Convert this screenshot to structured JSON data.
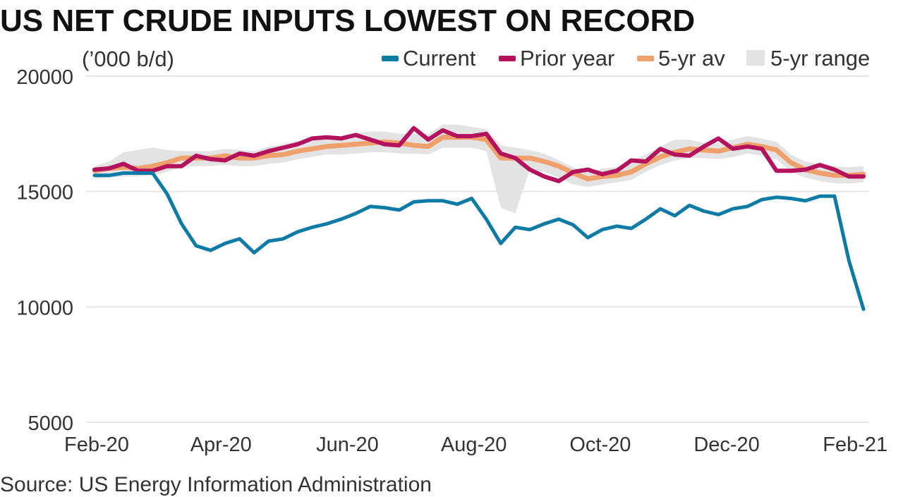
{
  "header": {
    "title": "US NET CRUDE INPUTS LOWEST ON RECORD",
    "unit": "(’000 b/d)"
  },
  "footer": {
    "source": "Source: US Energy Information Administration"
  },
  "colors": {
    "current": "#0e7aa6",
    "prior_year": "#b5125e",
    "five_yr_av": "#f0a06a",
    "five_yr_range": "#e3e3e3",
    "grid": "#e6e6e6",
    "text": "#333333"
  },
  "chart_data": {
    "type": "line",
    "title": "US NET CRUDE INPUTS LOWEST ON RECORD",
    "ylabel": "(’000 b/d)",
    "xlabel": "",
    "ylim": [
      5000,
      20000
    ],
    "yticks": [
      5000,
      10000,
      15000,
      20000
    ],
    "xlim": [
      "2020-01-31",
      "2021-02-05"
    ],
    "xtick_labels": [
      {
        "label": "Feb-20",
        "date": "2020-02-01"
      },
      {
        "label": "Apr-20",
        "date": "2020-04-01"
      },
      {
        "label": "Jun-20",
        "date": "2020-06-01"
      },
      {
        "label": "Aug-20",
        "date": "2020-08-01"
      },
      {
        "label": "Oct-20",
        "date": "2020-10-01"
      },
      {
        "label": "Dec-20",
        "date": "2020-12-01"
      },
      {
        "label": "Feb-21",
        "date": "2021-02-01"
      }
    ],
    "grid": true,
    "legend_position": "top-right",
    "x": [
      "2020-01-31",
      "2020-02-07",
      "2020-02-14",
      "2020-02-21",
      "2020-02-28",
      "2020-03-06",
      "2020-03-13",
      "2020-03-20",
      "2020-03-27",
      "2020-04-03",
      "2020-04-10",
      "2020-04-17",
      "2020-04-24",
      "2020-05-01",
      "2020-05-08",
      "2020-05-15",
      "2020-05-22",
      "2020-05-29",
      "2020-06-05",
      "2020-06-12",
      "2020-06-19",
      "2020-06-26",
      "2020-07-03",
      "2020-07-10",
      "2020-07-17",
      "2020-07-24",
      "2020-07-31",
      "2020-08-07",
      "2020-08-14",
      "2020-08-21",
      "2020-08-28",
      "2020-09-04",
      "2020-09-11",
      "2020-09-18",
      "2020-09-25",
      "2020-10-02",
      "2020-10-09",
      "2020-10-16",
      "2020-10-23",
      "2020-10-30",
      "2020-11-06",
      "2020-11-13",
      "2020-11-20",
      "2020-11-27",
      "2020-12-04",
      "2020-12-11",
      "2020-12-18",
      "2020-12-25",
      "2021-01-01",
      "2021-01-08",
      "2021-01-15",
      "2021-01-22",
      "2021-01-29",
      "2021-02-05"
    ],
    "series": [
      {
        "name": "Current",
        "values": [
          15700,
          15700,
          15800,
          15800,
          15800,
          14900,
          13600,
          12650,
          12450,
          12750,
          12950,
          12350,
          12850,
          12950,
          13250,
          13450,
          13600,
          13800,
          14050,
          14350,
          14300,
          14200,
          14550,
          14600,
          14600,
          14450,
          14700,
          13800,
          12750,
          13450,
          13350,
          13600,
          13800,
          13550,
          13000,
          13350,
          13500,
          13400,
          13800,
          14250,
          13950,
          14400,
          14150,
          14000,
          14250,
          14350,
          14650,
          14750,
          14700,
          14600,
          14800,
          14800,
          12000,
          9900
        ]
      },
      {
        "name": "Prior year",
        "values": [
          15950,
          16000,
          16200,
          15900,
          15900,
          16100,
          16100,
          16550,
          16400,
          16350,
          16650,
          16550,
          16750,
          16900,
          17050,
          17300,
          17350,
          17300,
          17450,
          17250,
          17050,
          17000,
          17750,
          17250,
          17650,
          17400,
          17400,
          17500,
          16650,
          16450,
          15950,
          15650,
          15450,
          15850,
          15950,
          15750,
          15900,
          16350,
          16300,
          16850,
          16600,
          16550,
          16950,
          17300,
          16850,
          16950,
          16850,
          15900,
          15900,
          15950,
          16150,
          15950,
          15650,
          15650
        ]
      },
      {
        "name": "5-yr av",
        "values": [
          15900,
          16000,
          16050,
          16000,
          16100,
          16250,
          16450,
          16450,
          16450,
          16550,
          16450,
          16450,
          16550,
          16600,
          16750,
          16850,
          16950,
          17000,
          17050,
          17100,
          17150,
          17100,
          17000,
          16950,
          17350,
          17350,
          17350,
          17250,
          16450,
          16450,
          16450,
          16300,
          16100,
          15800,
          15550,
          15650,
          15700,
          15850,
          16200,
          16500,
          16700,
          16850,
          16800,
          16750,
          16900,
          17050,
          16950,
          16800,
          16250,
          15950,
          15800,
          15700,
          15700,
          15750
        ]
      },
      {
        "name": "5-yr range",
        "low": [
          15550,
          15600,
          15650,
          15650,
          15700,
          15850,
          16050,
          16100,
          16100,
          16150,
          16100,
          16100,
          16200,
          16250,
          16400,
          16500,
          16600,
          16600,
          16650,
          16700,
          16700,
          16650,
          16650,
          16600,
          16900,
          16900,
          16900,
          16750,
          14300,
          14050,
          15950,
          15850,
          15600,
          15300,
          15200,
          15300,
          15400,
          15500,
          15850,
          16150,
          16350,
          16450,
          16450,
          16400,
          16500,
          16650,
          16550,
          16400,
          15850,
          15600,
          15450,
          15350,
          15350,
          15400
        ],
        "high": [
          16100,
          16300,
          16700,
          16800,
          16900,
          16800,
          16750,
          16750,
          16750,
          16850,
          16800,
          16750,
          16950,
          17050,
          17200,
          17200,
          17300,
          17400,
          17550,
          17600,
          17600,
          17500,
          17500,
          17500,
          17900,
          17900,
          17800,
          17700,
          17000,
          16900,
          16800,
          16650,
          16350,
          16050,
          15800,
          16000,
          16050,
          16350,
          16600,
          16950,
          17250,
          17250,
          17100,
          17100,
          17250,
          17400,
          17300,
          17150,
          16600,
          16300,
          16200,
          16100,
          16050,
          16100
        ]
      }
    ]
  }
}
